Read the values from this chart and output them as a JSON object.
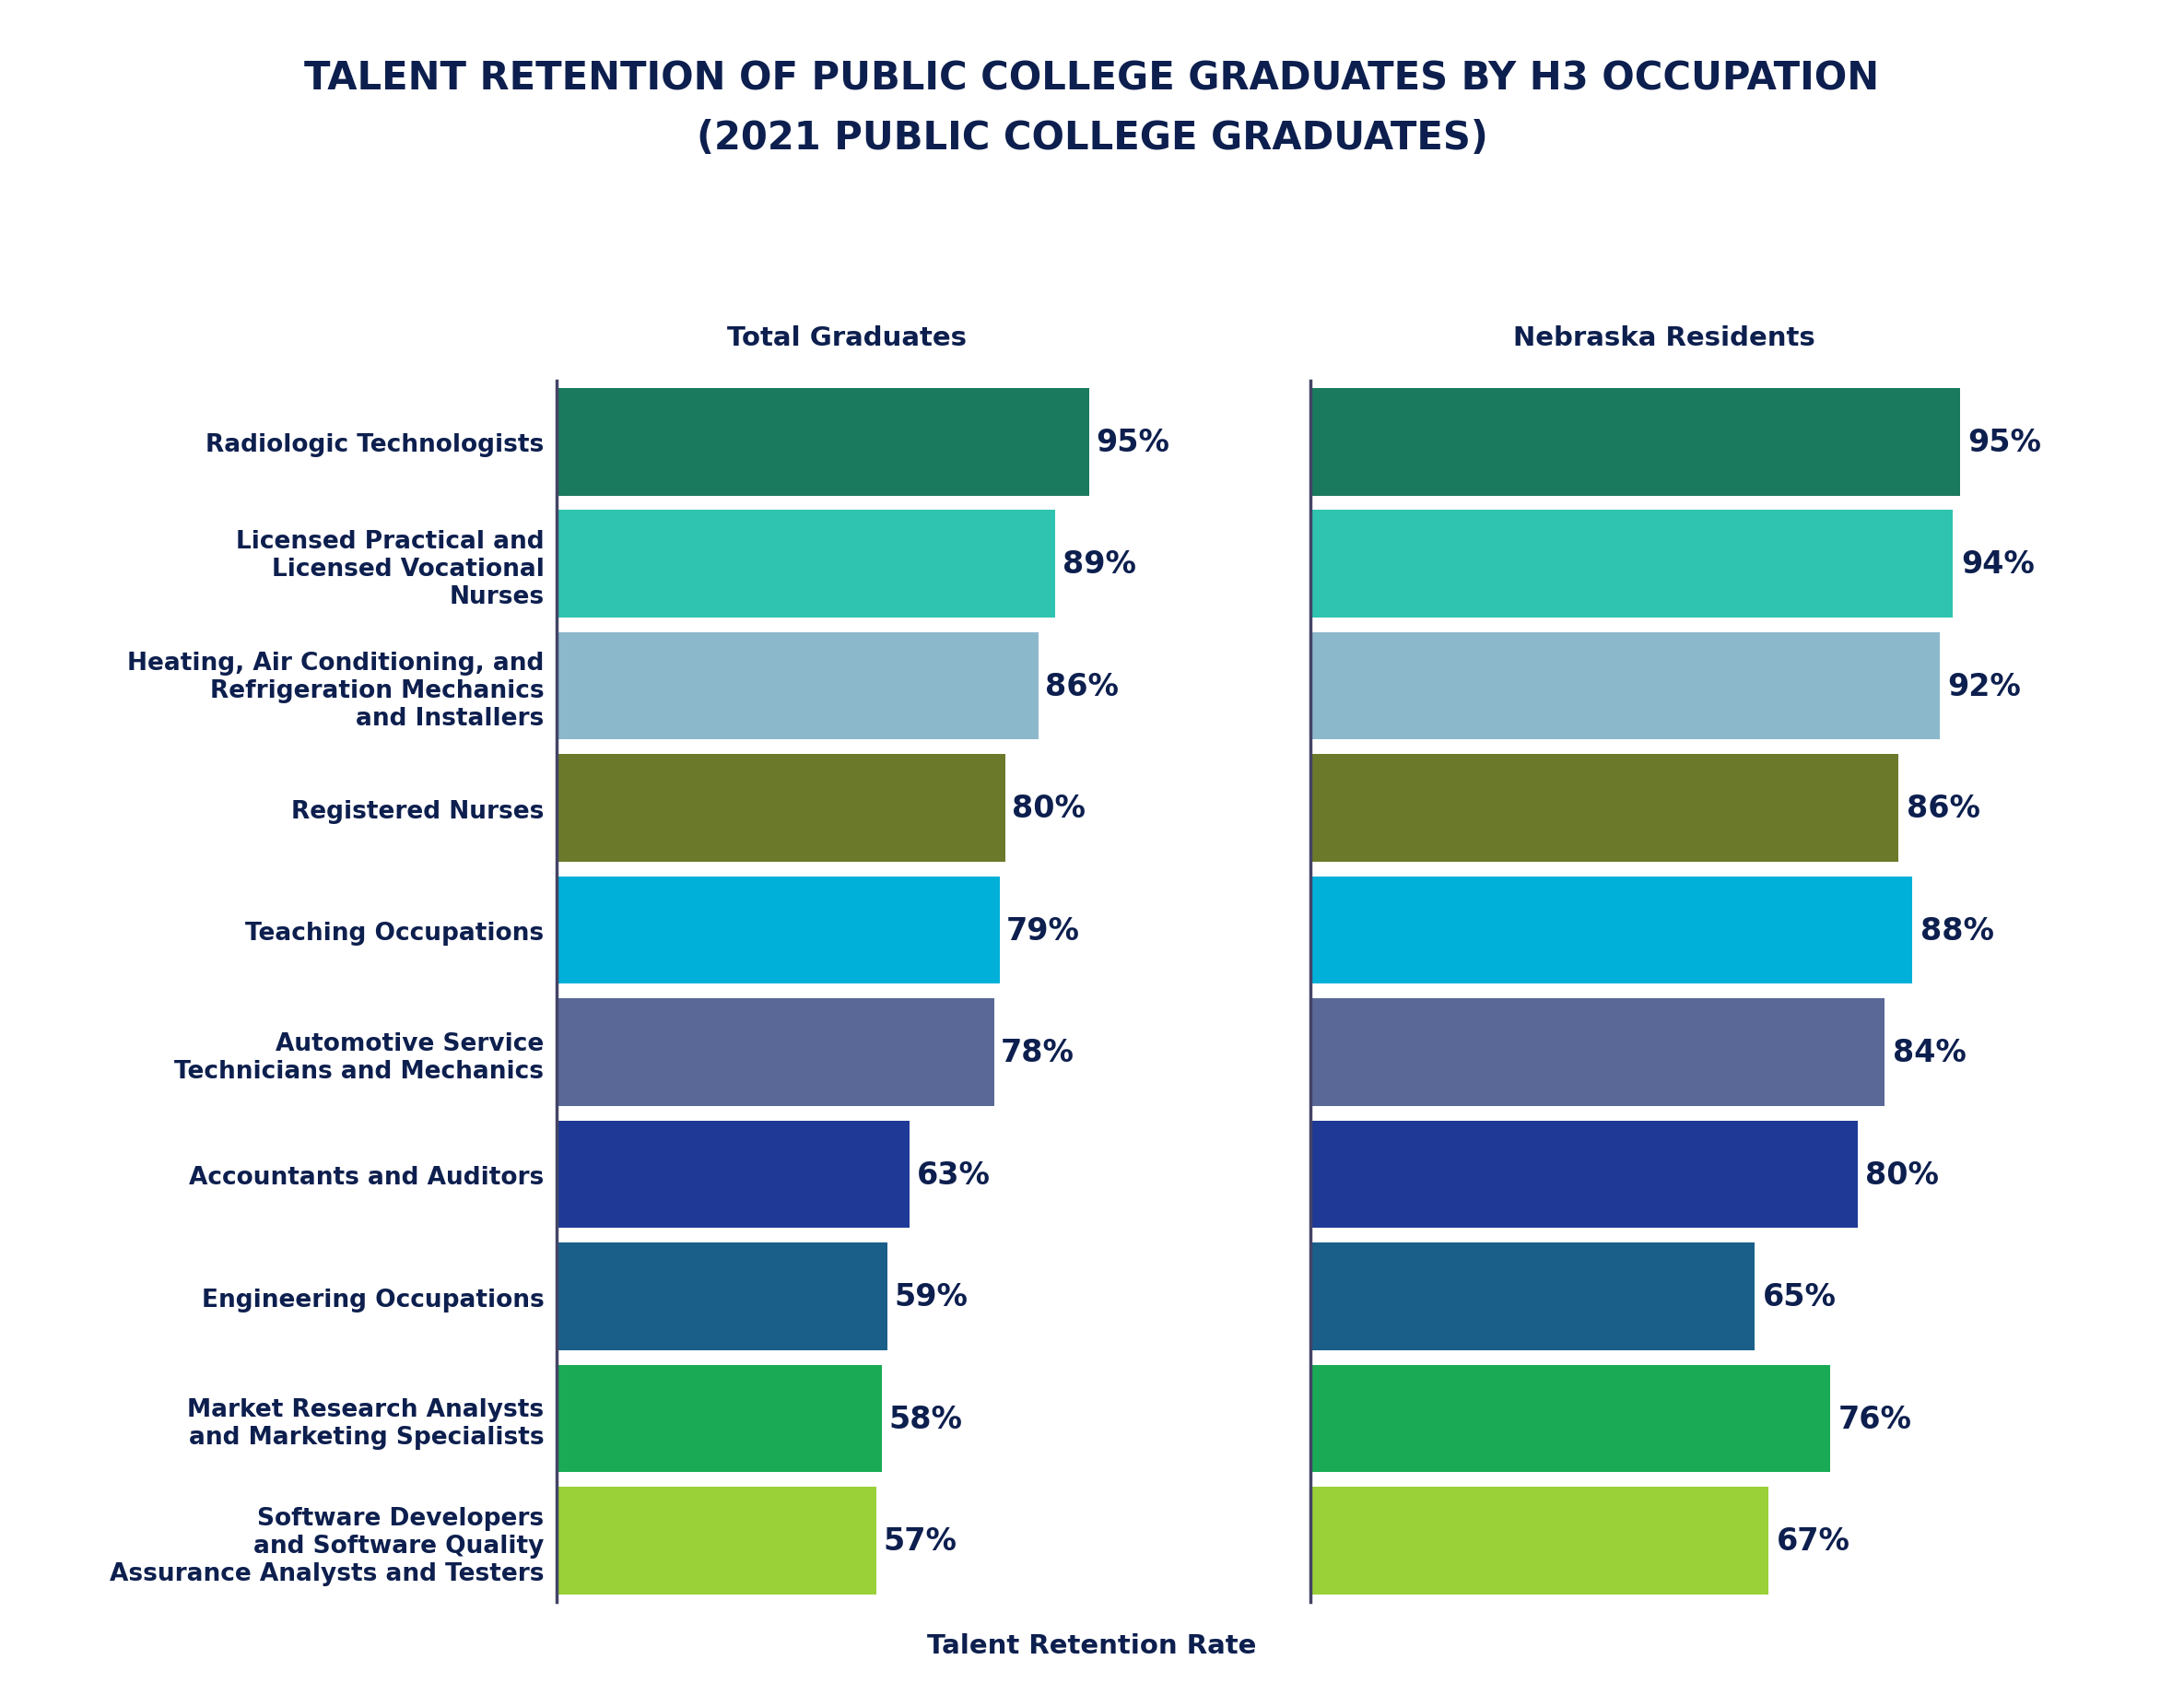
{
  "title_line1": "TALENT RETENTION OF PUBLIC COLLEGE GRADUATES BY H3 OCCUPATION",
  "title_line2": "(2021 PUBLIC COLLEGE GRADUATES)",
  "title_color": "#0d1f4e",
  "left_header": "Total Graduates",
  "right_header": "Nebraska Residents",
  "xlabel": "Talent Retention Rate",
  "categories": [
    "Radiologic Technologists",
    "Licensed Practical and\nLicensed Vocational\nNurses",
    "Heating, Air Conditioning, and\nRefrigeration Mechanics\nand Installers",
    "Registered Nurses",
    "Teaching Occupations",
    "Automotive Service\nTechnicians and Mechanics",
    "Accountants and Auditors",
    "Engineering Occupations",
    "Market Research Analysts\nand Marketing Specialists",
    "Software Developers\nand Software Quality\nAssurance Analysts and Testers"
  ],
  "left_values": [
    95,
    89,
    86,
    80,
    79,
    78,
    63,
    59,
    58,
    57
  ],
  "right_values": [
    95,
    94,
    92,
    86,
    88,
    84,
    80,
    65,
    76,
    67
  ],
  "bar_colors": [
    "#1a7a5e",
    "#2ec4b0",
    "#8cb8cc",
    "#6b7a2a",
    "#00b0d8",
    "#5a6898",
    "#1e3a96",
    "#1a5f8a",
    "#1aaa55",
    "#9ad038"
  ],
  "background_color": "#ffffff",
  "bar_height": 0.88,
  "xlim": [
    0,
    115
  ],
  "value_fontsize": 24,
  "label_fontsize": 19,
  "header_fontsize": 21,
  "title_fontsize": 30
}
